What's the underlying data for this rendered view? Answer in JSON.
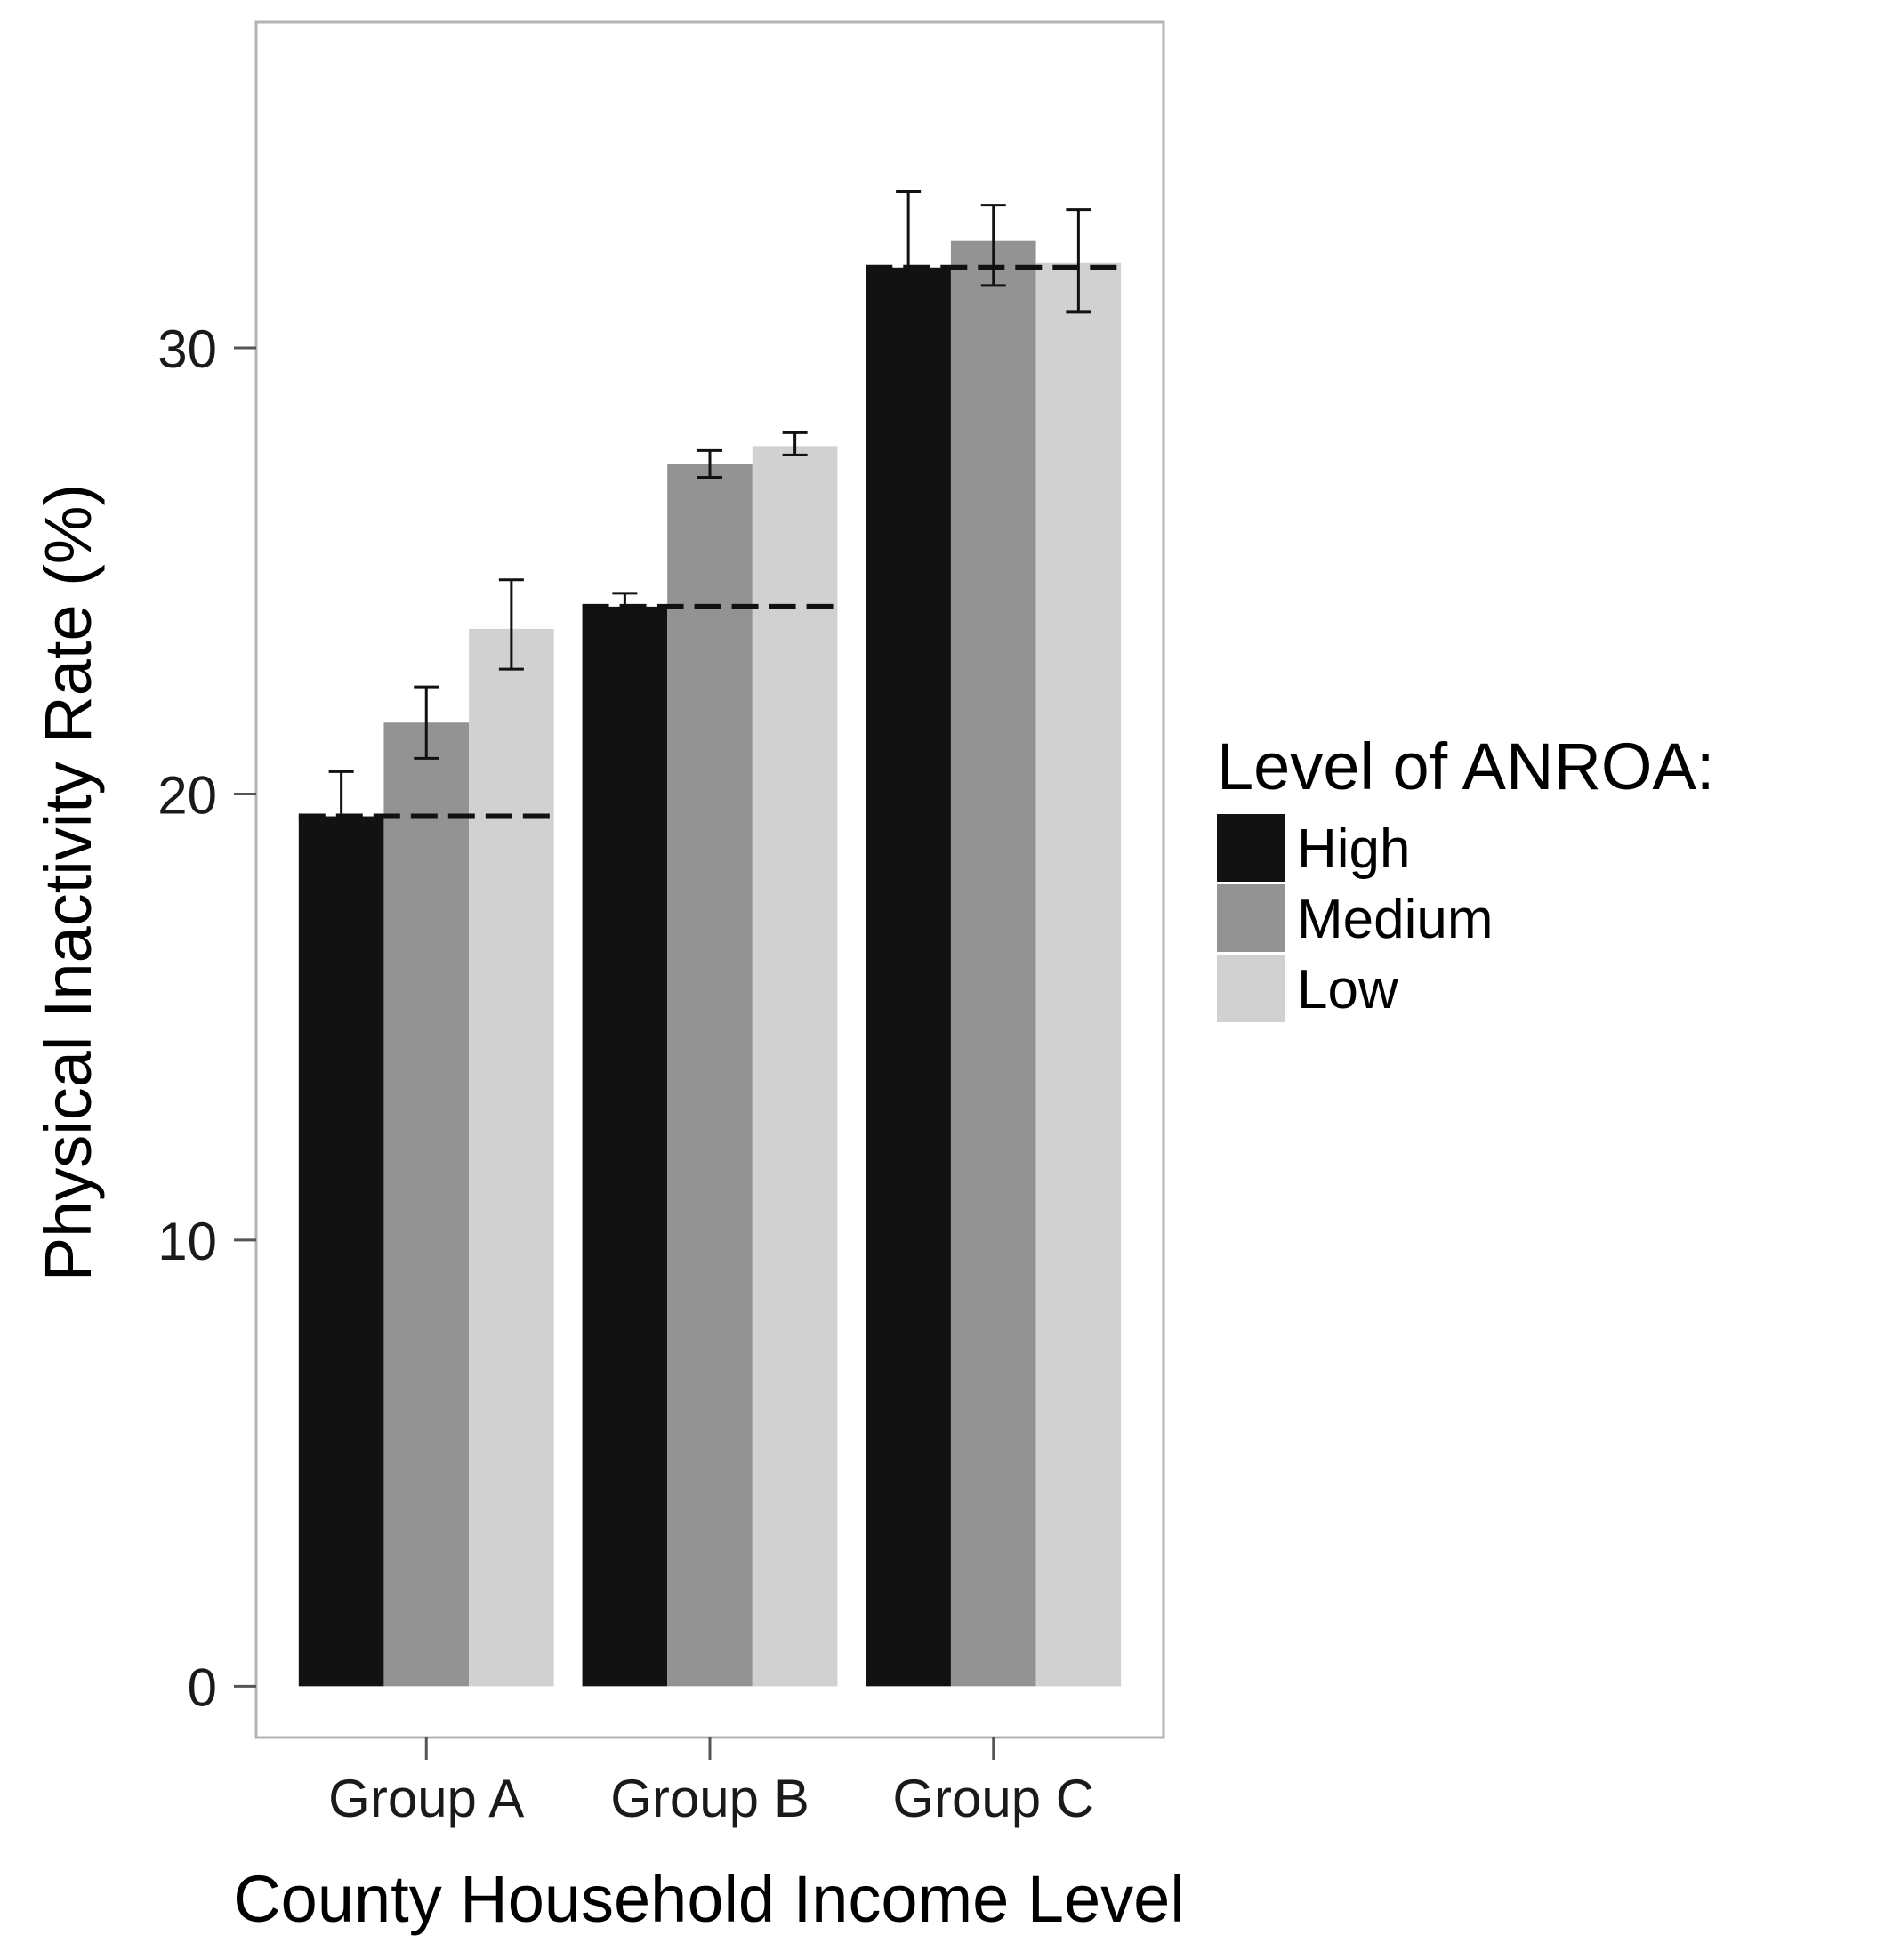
{
  "chart_data": {
    "type": "bar",
    "categories": [
      "Group A",
      "Group B",
      "Group C"
    ],
    "series": [
      {
        "name": "High",
        "color": "#121212",
        "values": [
          19.5,
          24.2,
          31.8
        ],
        "err_low": [
          18.6,
          23.9,
          30.4
        ],
        "err_high": [
          20.5,
          24.5,
          33.5
        ]
      },
      {
        "name": "Medium",
        "color": "#939393",
        "values": [
          21.6,
          27.4,
          32.4
        ],
        "err_low": [
          20.8,
          27.1,
          31.4
        ],
        "err_high": [
          22.4,
          27.7,
          33.2
        ]
      },
      {
        "name": "Low",
        "color": "#d1d1d1",
        "values": [
          23.7,
          27.8,
          31.9
        ],
        "err_low": [
          22.8,
          27.6,
          30.8
        ],
        "err_high": [
          24.8,
          28.1,
          33.1
        ]
      }
    ],
    "reference_lines": [
      19.5,
      24.2,
      31.8
    ],
    "yticks": [
      0,
      10,
      20,
      30
    ],
    "ylim": [
      -1.15,
      37.3
    ],
    "title": "",
    "xlabel": "County Household Income Level",
    "ylabel": "Physical Inactivity Rate (%)",
    "legend": {
      "title": "Level of ANROA:",
      "position": "right",
      "labels": [
        "High",
        "Medium",
        "Low"
      ]
    }
  }
}
